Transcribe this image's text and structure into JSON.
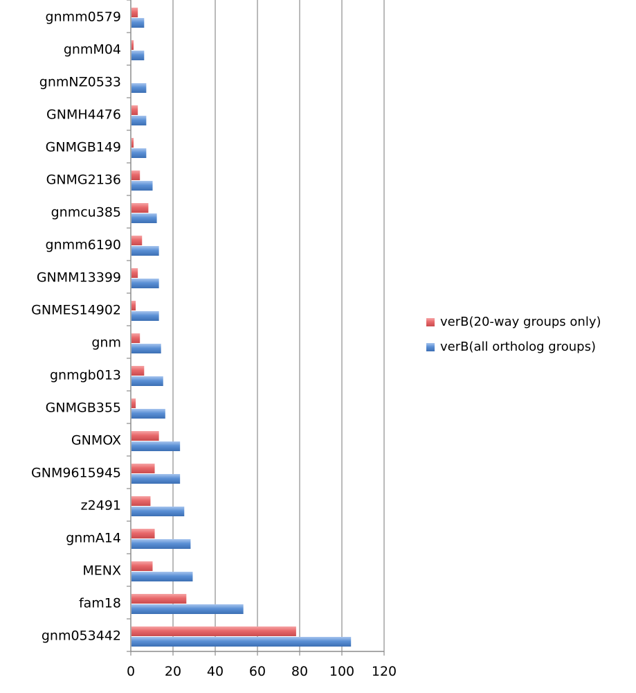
{
  "chart_data": {
    "type": "bar",
    "orientation": "horizontal",
    "title": "",
    "xlabel": "",
    "ylabel": "",
    "xlim": [
      0,
      120
    ],
    "xticks": [
      0,
      20,
      40,
      60,
      80,
      100,
      120
    ],
    "tick_labels": [
      "0",
      "20",
      "40",
      "60",
      "80",
      "100",
      "120"
    ],
    "grid": "vertical major gridlines",
    "legend_position": "right",
    "categories": [
      "gnmm0579",
      "gnmM04",
      "gnmNZ0533",
      "GNMH4476",
      "GNMGB149",
      "GNMG2136",
      "gnmcu385",
      "gnmm6190",
      "GNMM13399",
      "GNMES14902",
      "gnm",
      "gnmgb013",
      "GNMGB355",
      "GNMOX",
      "GNM9615945",
      "z2491",
      "gnmA14",
      "MENX",
      "fam18",
      "gnm053442"
    ],
    "series": [
      {
        "name": "verB(20-way groups only)",
        "color": "#e8696b",
        "values": [
          3,
          1,
          0,
          3,
          1,
          4,
          8,
          5,
          3,
          2,
          4,
          6,
          2,
          13,
          11,
          9,
          11,
          10,
          26,
          78
        ]
      },
      {
        "name": "verB(all ortholog groups)",
        "color": "#5b90d5",
        "values": [
          6,
          6,
          7,
          7,
          7,
          10,
          12,
          13,
          13,
          13,
          14,
          15,
          16,
          23,
          23,
          25,
          28,
          29,
          53,
          104
        ]
      }
    ]
  }
}
